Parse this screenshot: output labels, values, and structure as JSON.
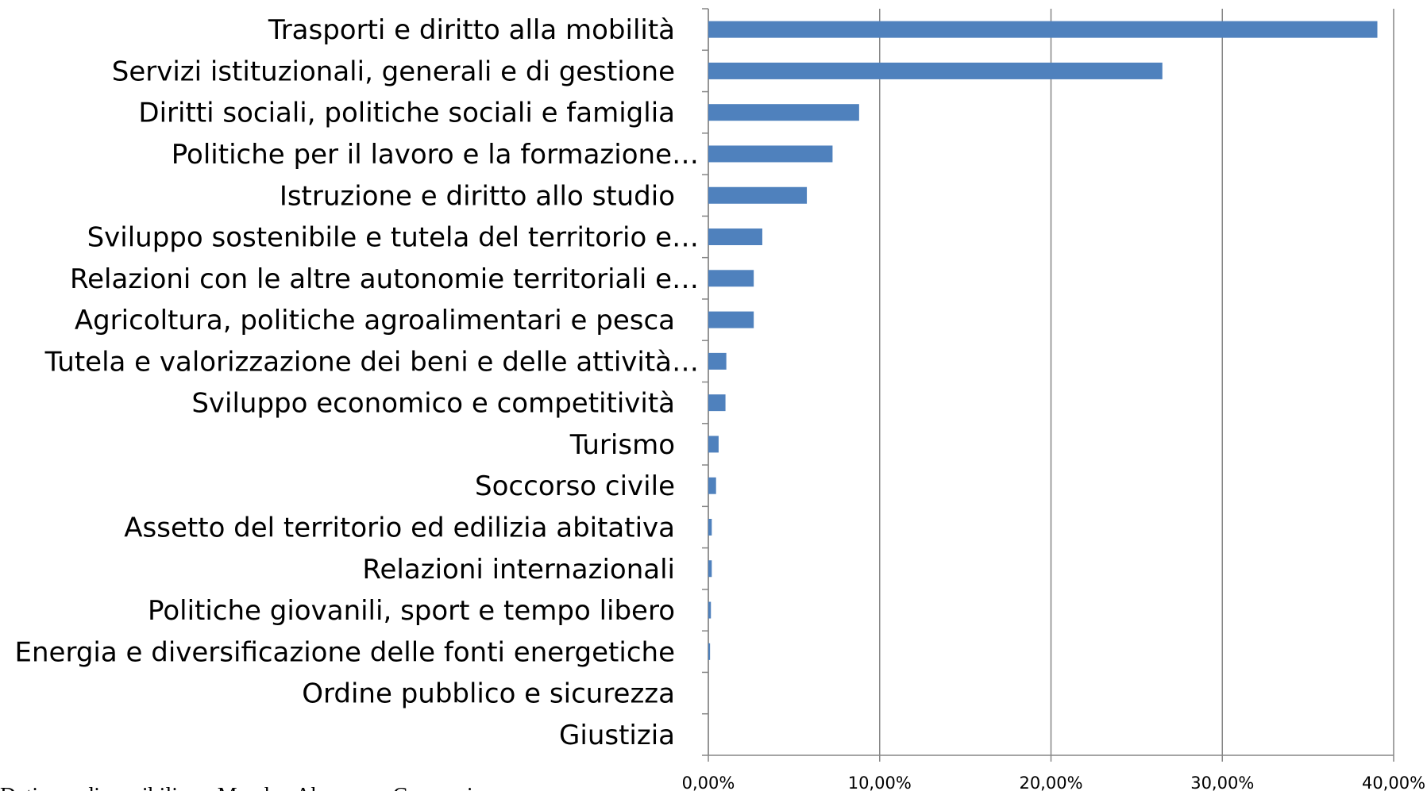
{
  "chart_data": {
    "type": "bar",
    "orientation": "horizontal",
    "categories": [
      "Trasporti e diritto alla mobilità",
      "Servizi istituzionali,  generali e di gestione",
      "Diritti sociali, politiche sociali e famiglia",
      "Politiche per il lavoro e la formazione…",
      "Istruzione e diritto allo studio",
      "Sviluppo sostenibile e tutela del territorio e…",
      "Relazioni con le altre autonomie territoriali e…",
      "Agricoltura, politiche agroalimentari e pesca",
      "Tutela e valorizzazione dei beni e delle attività…",
      "Sviluppo economico e competitività",
      "Turismo",
      "Soccorso civile",
      "Assetto del territorio ed edilizia abitativa",
      "Relazioni internazionali",
      "Politiche giovanili, sport e tempo libero",
      "Energia e diversificazione delle fonti energetiche",
      "Ordine pubblico e sicurezza",
      "Giustizia"
    ],
    "values": [
      39.05,
      26.5,
      8.8,
      7.25,
      5.75,
      3.15,
      2.65,
      2.65,
      1.05,
      1.0,
      0.6,
      0.45,
      0.2,
      0.2,
      0.15,
      0.1,
      0,
      0
    ],
    "color": "#4f81bd",
    "xlim": [
      0,
      40
    ],
    "xticks": [
      {
        "value": 0,
        "label": "0,00%"
      },
      {
        "value": 10,
        "label": "10,00%"
      },
      {
        "value": 20,
        "label": "20,00%"
      },
      {
        "value": 30,
        "label": "30,00%"
      },
      {
        "value": 40,
        "label": "40,00%"
      }
    ],
    "grid": true,
    "note": "Dati non disponibili per Marche, Abruzzo e Campania"
  }
}
